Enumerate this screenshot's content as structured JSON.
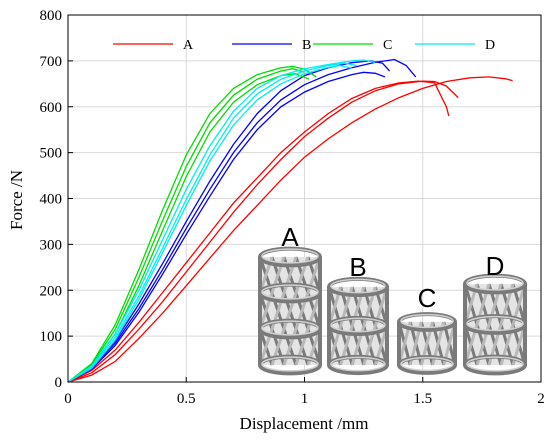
{
  "chart_data": {
    "type": "line",
    "xlabel": "Displacement /mm",
    "ylabel": "Force /N",
    "xlim": [
      0,
      2
    ],
    "ylim": [
      0,
      800
    ],
    "xticks": [
      0,
      0.5,
      1,
      1.5,
      2
    ],
    "yticks": [
      0,
      100,
      200,
      300,
      400,
      500,
      600,
      700,
      800
    ],
    "grid": true,
    "legend_placement": "top",
    "series": [
      {
        "name": "A",
        "color": "#ff0000",
        "curves": [
          [
            [
              0,
              0
            ],
            [
              0.1,
              20
            ],
            [
              0.2,
              60
            ],
            [
              0.3,
              115
            ],
            [
              0.4,
              175
            ],
            [
              0.5,
              240
            ],
            [
              0.6,
              305
            ],
            [
              0.7,
              370
            ],
            [
              0.8,
              430
            ],
            [
              0.9,
              485
            ],
            [
              1.0,
              535
            ],
            [
              1.1,
              575
            ],
            [
              1.2,
              610
            ],
            [
              1.3,
              635
            ],
            [
              1.4,
              650
            ],
            [
              1.5,
              656
            ],
            [
              1.55,
              655
            ],
            [
              1.6,
              645
            ],
            [
              1.65,
              620
            ]
          ],
          [
            [
              0,
              0
            ],
            [
              0.1,
              25
            ],
            [
              0.2,
              70
            ],
            [
              0.3,
              130
            ],
            [
              0.4,
              195
            ],
            [
              0.5,
              260
            ],
            [
              0.6,
              325
            ],
            [
              0.7,
              390
            ],
            [
              0.8,
              445
            ],
            [
              0.9,
              500
            ],
            [
              1.0,
              545
            ],
            [
              1.1,
              585
            ],
            [
              1.2,
              618
            ],
            [
              1.3,
              640
            ],
            [
              1.4,
              652
            ],
            [
              1.48,
              656
            ],
            [
              1.55,
              652
            ],
            [
              1.6,
              600
            ],
            [
              1.61,
              580
            ]
          ],
          [
            [
              0,
              0
            ],
            [
              0.1,
              15
            ],
            [
              0.2,
              45
            ],
            [
              0.3,
              95
            ],
            [
              0.4,
              150
            ],
            [
              0.5,
              210
            ],
            [
              0.6,
              270
            ],
            [
              0.7,
              330
            ],
            [
              0.8,
              385
            ],
            [
              0.9,
              440
            ],
            [
              1.0,
              490
            ],
            [
              1.1,
              530
            ],
            [
              1.2,
              565
            ],
            [
              1.3,
              595
            ],
            [
              1.4,
              620
            ],
            [
              1.5,
              640
            ],
            [
              1.6,
              655
            ],
            [
              1.7,
              663
            ],
            [
              1.78,
              665
            ],
            [
              1.85,
              661
            ],
            [
              1.88,
              657
            ]
          ]
        ]
      },
      {
        "name": "B",
        "color": "#0000ff",
        "curves": [
          [
            [
              0,
              0
            ],
            [
              0.1,
              30
            ],
            [
              0.2,
              85
            ],
            [
              0.3,
              160
            ],
            [
              0.4,
              245
            ],
            [
              0.5,
              335
            ],
            [
              0.6,
              420
            ],
            [
              0.7,
              500
            ],
            [
              0.8,
              565
            ],
            [
              0.9,
              615
            ],
            [
              1.0,
              648
            ],
            [
              1.1,
              670
            ],
            [
              1.2,
              685
            ],
            [
              1.3,
              697
            ],
            [
              1.38,
              703
            ],
            [
              1.43,
              690
            ],
            [
              1.47,
              665
            ]
          ],
          [
            [
              0,
              0
            ],
            [
              0.1,
              32
            ],
            [
              0.2,
              90
            ],
            [
              0.3,
              170
            ],
            [
              0.4,
              258
            ],
            [
              0.5,
              350
            ],
            [
              0.6,
              438
            ],
            [
              0.7,
              518
            ],
            [
              0.8,
              585
            ],
            [
              0.9,
              635
            ],
            [
              1.0,
              668
            ],
            [
              1.1,
              685
            ],
            [
              1.2,
              696
            ],
            [
              1.28,
              700
            ],
            [
              1.33,
              695
            ],
            [
              1.36,
              678
            ]
          ],
          [
            [
              0,
              0
            ],
            [
              0.1,
              28
            ],
            [
              0.2,
              80
            ],
            [
              0.3,
              152
            ],
            [
              0.4,
              235
            ],
            [
              0.5,
              322
            ],
            [
              0.6,
              405
            ],
            [
              0.7,
              485
            ],
            [
              0.8,
              550
            ],
            [
              0.9,
              600
            ],
            [
              1.0,
              632
            ],
            [
              1.1,
              655
            ],
            [
              1.2,
              670
            ],
            [
              1.25,
              675
            ],
            [
              1.3,
              673
            ],
            [
              1.34,
              665
            ]
          ]
        ]
      },
      {
        "name": "C",
        "color": "#00dd00",
        "curves": [
          [
            [
              0,
              0
            ],
            [
              0.1,
              40
            ],
            [
              0.2,
              125
            ],
            [
              0.3,
              245
            ],
            [
              0.4,
              375
            ],
            [
              0.5,
              495
            ],
            [
              0.6,
              585
            ],
            [
              0.7,
              640
            ],
            [
              0.8,
              670
            ],
            [
              0.9,
              685
            ],
            [
              0.95,
              688
            ],
            [
              1.0,
              682
            ],
            [
              1.05,
              665
            ]
          ],
          [
            [
              0,
              0
            ],
            [
              0.1,
              38
            ],
            [
              0.2,
              115
            ],
            [
              0.3,
              228
            ],
            [
              0.4,
              352
            ],
            [
              0.5,
              470
            ],
            [
              0.6,
              565
            ],
            [
              0.7,
              625
            ],
            [
              0.8,
              660
            ],
            [
              0.9,
              678
            ],
            [
              0.95,
              683
            ],
            [
              1.0,
              675
            ]
          ],
          [
            [
              0,
              0
            ],
            [
              0.1,
              35
            ],
            [
              0.2,
              105
            ],
            [
              0.3,
              210
            ],
            [
              0.4,
              330
            ],
            [
              0.5,
              448
            ],
            [
              0.6,
              545
            ],
            [
              0.7,
              610
            ],
            [
              0.8,
              648
            ],
            [
              0.9,
              668
            ],
            [
              0.96,
              672
            ],
            [
              1.02,
              660
            ]
          ]
        ]
      },
      {
        "name": "D",
        "color": "#00eeee",
        "curves": [
          [
            [
              0,
              0
            ],
            [
              0.1,
              35
            ],
            [
              0.2,
              105
            ],
            [
              0.3,
              200
            ],
            [
              0.4,
              310
            ],
            [
              0.5,
              420
            ],
            [
              0.6,
              515
            ],
            [
              0.7,
              590
            ],
            [
              0.8,
              640
            ],
            [
              0.9,
              668
            ],
            [
              1.0,
              683
            ],
            [
              1.1,
              692
            ],
            [
              1.2,
              700
            ],
            [
              1.25,
              702
            ],
            [
              1.3,
              697
            ]
          ],
          [
            [
              0,
              0
            ],
            [
              0.1,
              33
            ],
            [
              0.2,
              98
            ],
            [
              0.3,
              188
            ],
            [
              0.4,
              292
            ],
            [
              0.5,
              398
            ],
            [
              0.6,
              495
            ],
            [
              0.7,
              575
            ],
            [
              0.8,
              628
            ],
            [
              0.9,
              660
            ],
            [
              1.0,
              678
            ],
            [
              1.1,
              690
            ],
            [
              1.17,
              695
            ],
            [
              1.22,
              690
            ]
          ],
          [
            [
              0,
              0
            ],
            [
              0.1,
              30
            ],
            [
              0.2,
              92
            ],
            [
              0.3,
              180
            ],
            [
              0.4,
              282
            ],
            [
              0.5,
              385
            ],
            [
              0.6,
              482
            ],
            [
              0.7,
              560
            ],
            [
              0.8,
              615
            ],
            [
              0.9,
              650
            ],
            [
              1.0,
              672
            ],
            [
              1.1,
              686
            ],
            [
              1.15,
              690
            ],
            [
              1.2,
              684
            ]
          ]
        ]
      }
    ],
    "annotations": [
      "A",
      "B",
      "C",
      "D"
    ]
  },
  "colors": {
    "grid": "#d9d9d9",
    "axis": "#000000",
    "scaffold_fill": "#b8b8b8",
    "scaffold_stroke": "#7a7a7a"
  }
}
